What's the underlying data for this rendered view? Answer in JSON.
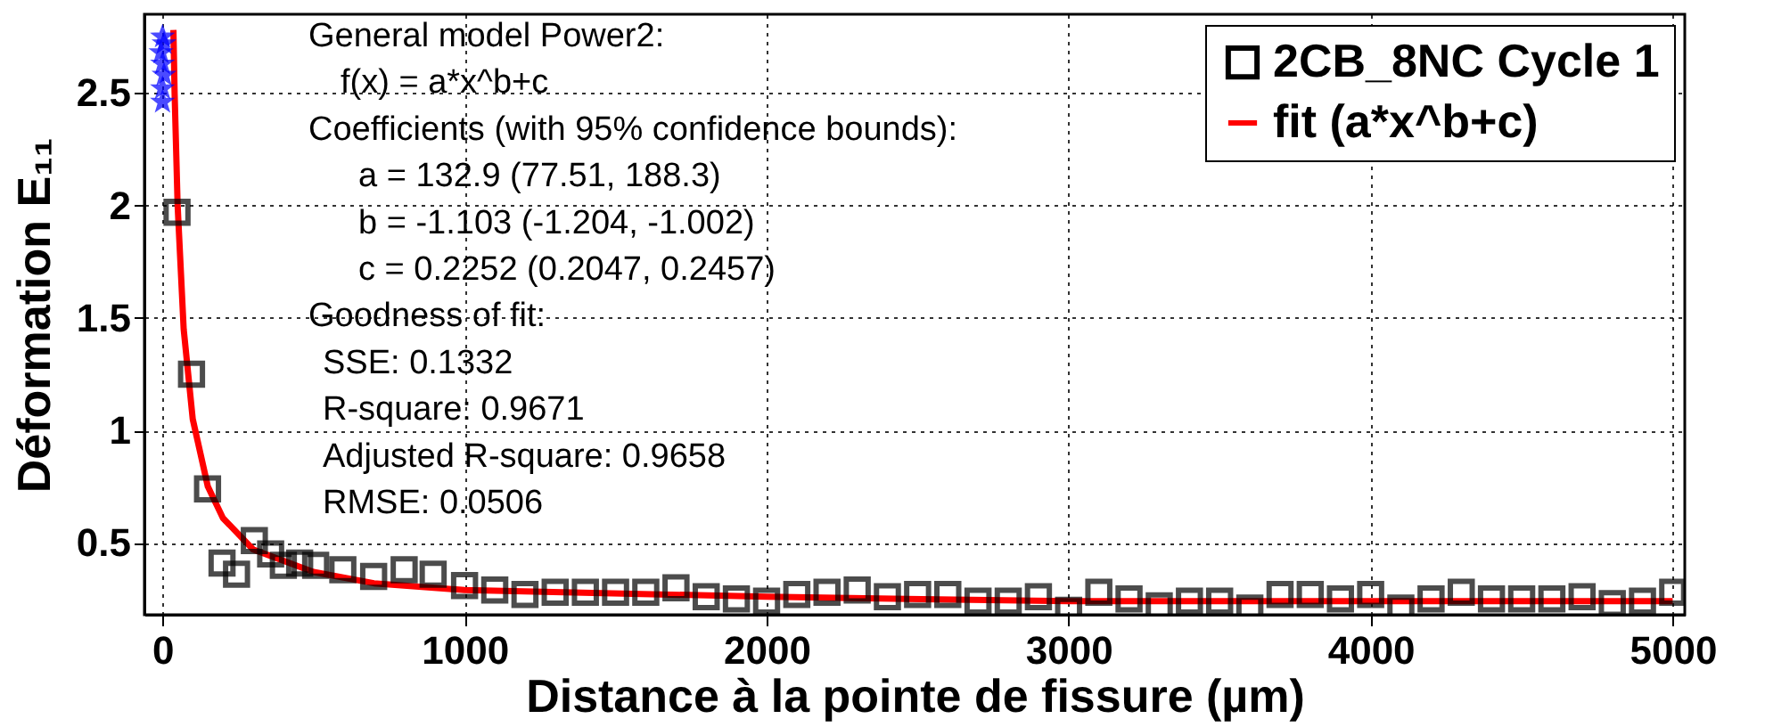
{
  "chart_data": {
    "type": "scatter",
    "xlabel": "Distance à la pointe de fissure (µm)",
    "ylabel": "Déformation E₁₁",
    "xlim": [
      -60,
      5040
    ],
    "xticks": [
      0,
      1000,
      2000,
      3000,
      4000,
      5000
    ],
    "ylim": [
      0.18,
      2.85
    ],
    "yticks": [
      0.5,
      1,
      1.5,
      2,
      2.5
    ],
    "grid": true,
    "legend": "top right",
    "series": [
      {
        "name": "2CB_8NC Cycle 1",
        "marker": "square",
        "color": "#000000",
        "x": [
          48,
          96,
          149,
          197,
          245,
          304,
          358,
          400,
          454,
          507,
          597,
          699,
          800,
          896,
          1000,
          1100,
          1200,
          1300,
          1400,
          1500,
          1600,
          1700,
          1800,
          1900,
          2000,
          2100,
          2200,
          2300,
          2400,
          2500,
          2600,
          2700,
          2800,
          2900,
          3000,
          3100,
          3200,
          3300,
          3400,
          3500,
          3600,
          3700,
          3800,
          3900,
          4000,
          4100,
          4200,
          4300,
          4400,
          4500,
          4600,
          4700,
          4800,
          4900,
          5000
        ],
        "values": [
          1.97,
          1.25,
          0.74,
          0.41,
          0.36,
          0.51,
          0.45,
          0.4,
          0.41,
          0.4,
          0.38,
          0.35,
          0.38,
          0.36,
          0.31,
          0.29,
          0.27,
          0.28,
          0.28,
          0.28,
          0.28,
          0.3,
          0.26,
          0.25,
          0.24,
          0.27,
          0.28,
          0.29,
          0.26,
          0.27,
          0.27,
          0.24,
          0.24,
          0.26,
          0.2,
          0.28,
          0.25,
          0.22,
          0.24,
          0.24,
          0.21,
          0.27,
          0.27,
          0.25,
          0.27,
          0.21,
          0.25,
          0.28,
          0.25,
          0.25,
          0.25,
          0.26,
          0.23,
          0.24,
          0.28
        ]
      },
      {
        "name": "fit (a*x^b+c)",
        "type": "line",
        "color": "#ff0000",
        "x": [
          36,
          40,
          50,
          70,
          100,
          150,
          200,
          300,
          500,
          700,
          1000,
          2000,
          3000,
          5000
        ],
        "values": [
          2.78,
          2.5,
          2.0,
          1.45,
          1.05,
          0.75,
          0.61,
          0.47,
          0.37,
          0.32,
          0.29,
          0.26,
          0.24,
          0.24
        ]
      },
      {
        "marker": "star",
        "color": "#0000ff",
        "x": [
          0,
          5,
          -5,
          0,
          5,
          0,
          0
        ],
        "values": [
          2.75,
          2.72,
          2.68,
          2.63,
          2.58,
          2.52,
          2.46
        ]
      }
    ],
    "annotations": [
      "General model Power2:",
      "f(x) = a*x^b+c",
      "Coefficients (with 95% confidence bounds):",
      "a = 132.9 (77.51, 188.3)",
      "b = -1.103 (-1.204, -1.002)",
      "c = 0.2252 (0.2047, 0.2457)",
      "Goodness of fit:",
      "SSE: 0.1332",
      "R-square: 0.9671",
      "Adjusted R-square: 0.9658",
      "RMSE: 0.0506"
    ]
  }
}
